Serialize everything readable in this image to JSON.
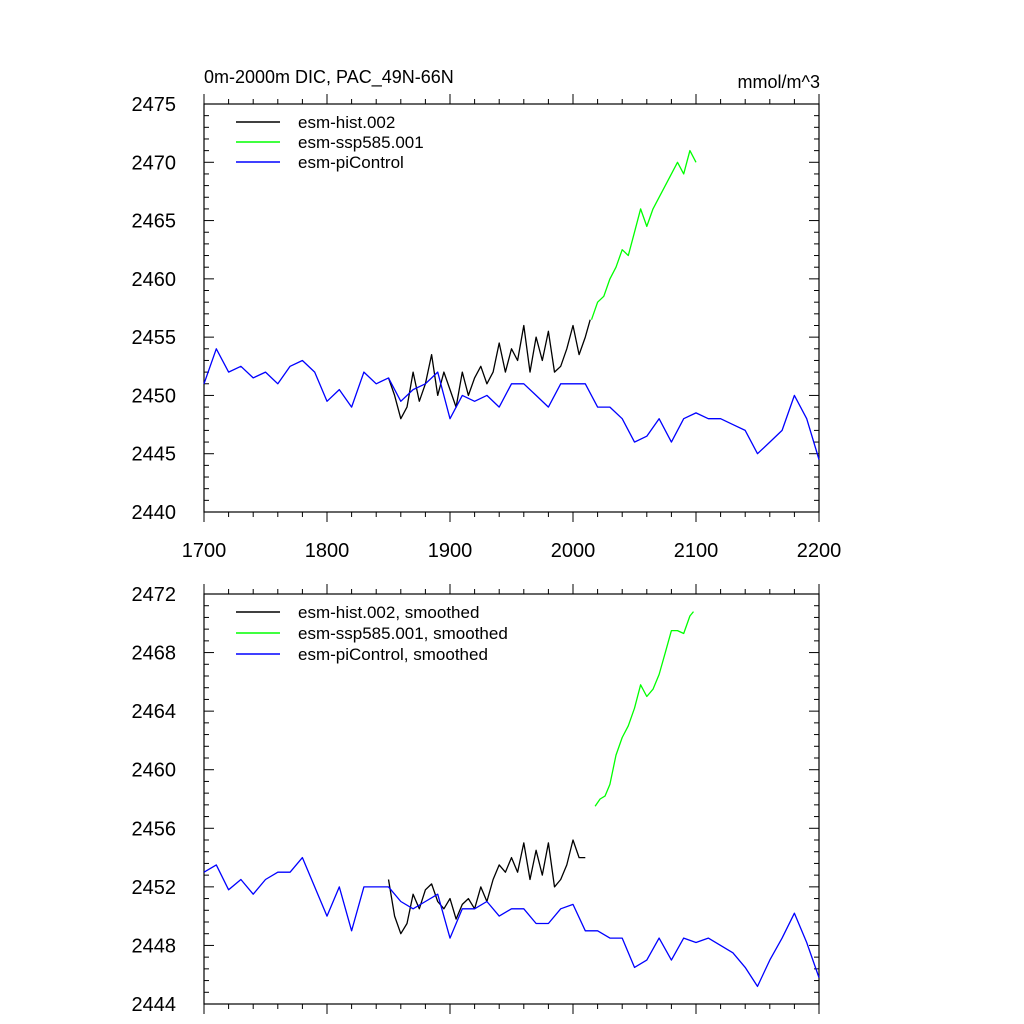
{
  "chart_data": [
    {
      "type": "line",
      "title": "0m-2000m DIC, PAC_49N-66N",
      "units": "mmol/m^3",
      "xlim": [
        1700,
        2200
      ],
      "ylim": [
        2440,
        2475
      ],
      "xticks": [
        1700,
        1800,
        1900,
        2000,
        2100,
        2200
      ],
      "yticks": [
        2440,
        2445,
        2450,
        2455,
        2460,
        2465,
        2470,
        2475
      ],
      "xtick_labels_shown": true,
      "legend": "top-left",
      "series": [
        {
          "name": "esm-hist.002",
          "color": "#000000",
          "x": [
            1850,
            1855,
            1860,
            1865,
            1870,
            1875,
            1880,
            1885,
            1890,
            1895,
            1900,
            1905,
            1910,
            1915,
            1920,
            1925,
            1930,
            1935,
            1940,
            1945,
            1950,
            1955,
            1960,
            1965,
            1970,
            1975,
            1980,
            1985,
            1990,
            1995,
            2000,
            2005,
            2010,
            2014
          ],
          "values": [
            2451.5,
            2450,
            2448,
            2449,
            2452,
            2449.5,
            2451,
            2453.5,
            2450,
            2452,
            2450.5,
            2449,
            2452,
            2450,
            2451.5,
            2452.5,
            2451,
            2452,
            2454.5,
            2452,
            2454,
            2453,
            2456,
            2452,
            2455,
            2453,
            2455.5,
            2452,
            2452.5,
            2454,
            2456,
            2453.5,
            2455,
            2456.5
          ]
        },
        {
          "name": "esm-ssp585.001",
          "color": "#00ff00",
          "x": [
            2015,
            2020,
            2025,
            2030,
            2035,
            2040,
            2045,
            2050,
            2055,
            2060,
            2065,
            2070,
            2075,
            2080,
            2085,
            2090,
            2095,
            2100
          ],
          "values": [
            2456.5,
            2458,
            2458.5,
            2460,
            2461,
            2462.5,
            2462,
            2464,
            2466,
            2464.5,
            2466,
            2467,
            2468,
            2469,
            2470,
            2469,
            2471,
            2470
          ]
        },
        {
          "name": "esm-piControl",
          "color": "#0000ff",
          "x": [
            1700,
            1710,
            1720,
            1730,
            1740,
            1750,
            1760,
            1770,
            1780,
            1790,
            1800,
            1810,
            1820,
            1830,
            1840,
            1850,
            1860,
            1870,
            1880,
            1890,
            1900,
            1910,
            1920,
            1930,
            1940,
            1950,
            1960,
            1970,
            1980,
            1990,
            2000,
            2010,
            2020,
            2030,
            2040,
            2050,
            2060,
            2070,
            2080,
            2090,
            2100,
            2110,
            2120,
            2130,
            2140,
            2150,
            2160,
            2170,
            2180,
            2190,
            2200
          ],
          "values": [
            2451,
            2454,
            2452,
            2452.5,
            2451.5,
            2452,
            2451,
            2452.5,
            2453,
            2452,
            2449.5,
            2450.5,
            2449,
            2452,
            2451,
            2451.5,
            2449.5,
            2450.5,
            2451,
            2452,
            2448,
            2450,
            2449.5,
            2450,
            2449,
            2451,
            2451,
            2450,
            2449,
            2451,
            2451,
            2451,
            2449,
            2449,
            2448,
            2446,
            2446.5,
            2448,
            2446,
            2448,
            2448.5,
            2448,
            2448,
            2447.5,
            2447,
            2445,
            2446,
            2447,
            2450,
            2448,
            2444.5
          ]
        }
      ]
    },
    {
      "type": "line",
      "title": "",
      "xlim": [
        1700,
        2200
      ],
      "ylim": [
        2444,
        2472
      ],
      "xticks": [
        1700,
        1800,
        1900,
        2000,
        2100,
        2200
      ],
      "yticks": [
        2444,
        2448,
        2452,
        2456,
        2460,
        2464,
        2468,
        2472
      ],
      "xtick_labels_shown": false,
      "legend": "top-left",
      "series": [
        {
          "name": "esm-hist.002, smoothed",
          "color": "#000000",
          "x": [
            1850,
            1855,
            1860,
            1865,
            1870,
            1875,
            1880,
            1885,
            1890,
            1895,
            1900,
            1905,
            1910,
            1915,
            1920,
            1925,
            1930,
            1935,
            1940,
            1945,
            1950,
            1955,
            1960,
            1965,
            1970,
            1975,
            1980,
            1985,
            1990,
            1995,
            2000,
            2005,
            2010
          ],
          "values": [
            2452.5,
            2450,
            2448.8,
            2449.5,
            2451.5,
            2450.5,
            2451.8,
            2452.2,
            2451,
            2450.5,
            2451.2,
            2449.8,
            2450.8,
            2451.2,
            2450.5,
            2452,
            2451,
            2452.5,
            2453.5,
            2453,
            2454,
            2453,
            2455,
            2452.5,
            2454.5,
            2452.8,
            2455,
            2452,
            2452.5,
            2453.5,
            2455.2,
            2454,
            2454
          ]
        },
        {
          "name": "esm-ssp585.001, smoothed",
          "color": "#00ff00",
          "x": [
            2018,
            2022,
            2026,
            2030,
            2035,
            2040,
            2045,
            2050,
            2055,
            2060,
            2065,
            2070,
            2075,
            2080,
            2085,
            2090,
            2095,
            2098
          ],
          "values": [
            2457.5,
            2458,
            2458.2,
            2459,
            2461,
            2462.2,
            2463,
            2464.2,
            2465.8,
            2465,
            2465.5,
            2466.5,
            2468,
            2469.5,
            2469.5,
            2469.3,
            2470.5,
            2470.8
          ]
        },
        {
          "name": "esm-piControl, smoothed",
          "color": "#0000ff",
          "x": [
            1700,
            1710,
            1720,
            1730,
            1740,
            1750,
            1760,
            1770,
            1780,
            1790,
            1800,
            1810,
            1820,
            1830,
            1840,
            1850,
            1860,
            1870,
            1880,
            1890,
            1900,
            1910,
            1920,
            1930,
            1940,
            1950,
            1960,
            1970,
            1980,
            1990,
            2000,
            2010,
            2020,
            2030,
            2040,
            2050,
            2060,
            2070,
            2080,
            2090,
            2100,
            2110,
            2120,
            2130,
            2140,
            2150,
            2160,
            2170,
            2180,
            2190,
            2200
          ],
          "values": [
            2453,
            2453.5,
            2451.8,
            2452.5,
            2451.5,
            2452.5,
            2453,
            2453,
            2454,
            2452,
            2450,
            2452,
            2449,
            2452,
            2452,
            2452,
            2451,
            2450.5,
            2451,
            2451.5,
            2448.5,
            2450.5,
            2450.5,
            2451,
            2450,
            2450.5,
            2450.5,
            2449.5,
            2449.5,
            2450.5,
            2450.8,
            2449,
            2449,
            2448.5,
            2448.5,
            2446.5,
            2447,
            2448.5,
            2447,
            2448.5,
            2448.2,
            2448.5,
            2448,
            2447.5,
            2446.5,
            2445.2,
            2447,
            2448.5,
            2450.2,
            2448.2,
            2445.8
          ]
        }
      ]
    }
  ]
}
